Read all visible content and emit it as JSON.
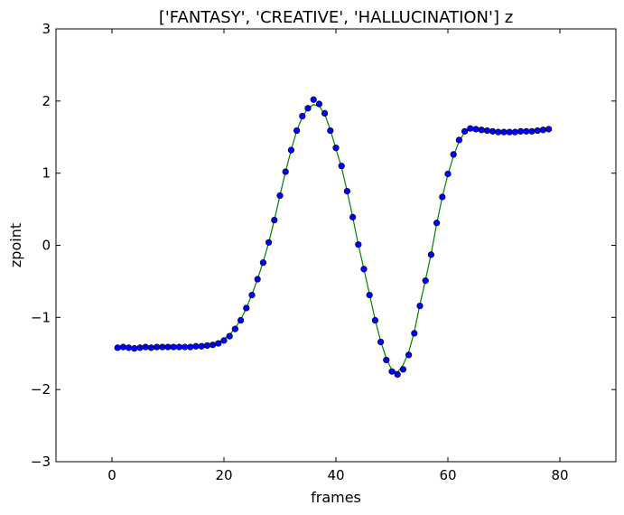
{
  "chart_data": {
    "type": "line",
    "title": "['FANTASY', 'CREATIVE', 'HALLUCINATION'] z",
    "xlabel": "frames",
    "ylabel": "zpoint",
    "xlim": [
      -10,
      90
    ],
    "ylim": [
      -3,
      3
    ],
    "xticks": [
      0,
      20,
      40,
      60,
      80
    ],
    "yticks": [
      -3,
      -2,
      -1,
      0,
      1,
      2,
      3
    ],
    "xtick_labels": [
      "0",
      "20",
      "40",
      "60",
      "80"
    ],
    "ytick_labels": [
      "−3",
      "−2",
      "−1",
      "0",
      "1",
      "2",
      "3"
    ],
    "grid": false,
    "series": [
      {
        "kind": "line",
        "color": "#008000",
        "x": [
          1,
          2,
          3,
          4,
          5,
          6,
          7,
          8,
          9,
          10,
          11,
          12,
          13,
          14,
          15,
          16,
          17,
          18,
          19,
          20,
          21,
          22,
          23,
          24,
          25,
          26,
          27,
          28,
          29,
          30,
          31,
          32,
          33,
          34,
          35,
          36,
          37,
          38,
          39,
          40,
          41,
          42,
          43,
          44,
          45,
          46,
          47,
          48,
          49,
          50,
          51,
          52,
          53,
          54,
          55,
          56,
          57,
          58,
          59,
          60,
          61,
          62,
          63,
          64,
          65,
          66,
          67,
          68,
          69,
          70,
          71,
          72,
          73,
          74,
          75,
          76,
          77,
          78
        ],
        "values": [
          -1.42,
          -1.42,
          -1.42,
          -1.42,
          -1.42,
          -1.42,
          -1.42,
          -1.42,
          -1.42,
          -1.42,
          -1.42,
          -1.42,
          -1.42,
          -1.41,
          -1.41,
          -1.4,
          -1.39,
          -1.37,
          -1.35,
          -1.3,
          -1.24,
          -1.15,
          -1.03,
          -0.87,
          -0.68,
          -0.47,
          -0.23,
          0.04,
          0.35,
          0.69,
          1.02,
          1.32,
          1.59,
          1.78,
          1.9,
          1.95,
          1.93,
          1.82,
          1.6,
          1.34,
          1.08,
          0.75,
          0.39,
          0.01,
          -0.33,
          -0.68,
          -1.03,
          -1.33,
          -1.57,
          -1.73,
          -1.76,
          -1.66,
          -1.48,
          -1.2,
          -0.82,
          -0.48,
          -0.12,
          0.3,
          0.67,
          0.98,
          1.24,
          1.44,
          1.57,
          1.61,
          1.61,
          1.6,
          1.59,
          1.58,
          1.58,
          1.57,
          1.57,
          1.57,
          1.58,
          1.58,
          1.58,
          1.59,
          1.59,
          1.6
        ]
      },
      {
        "kind": "scatter",
        "color": "#0000ff",
        "x": [
          1,
          2,
          3,
          4,
          5,
          6,
          7,
          8,
          9,
          10,
          11,
          12,
          13,
          14,
          15,
          16,
          17,
          18,
          19,
          20,
          21,
          22,
          23,
          24,
          25,
          26,
          27,
          28,
          29,
          30,
          31,
          32,
          33,
          34,
          35,
          36,
          37,
          38,
          39,
          40,
          41,
          42,
          43,
          44,
          45,
          46,
          47,
          48,
          49,
          50,
          51,
          52,
          53,
          54,
          55,
          56,
          57,
          58,
          59,
          60,
          61,
          62,
          63,
          64,
          65,
          66,
          67,
          68,
          69,
          70,
          71,
          72,
          73,
          74,
          75,
          76,
          77,
          78
        ],
        "values": [
          -1.42,
          -1.41,
          -1.42,
          -1.43,
          -1.42,
          -1.41,
          -1.42,
          -1.41,
          -1.41,
          -1.41,
          -1.41,
          -1.41,
          -1.41,
          -1.41,
          -1.4,
          -1.4,
          -1.39,
          -1.38,
          -1.36,
          -1.32,
          -1.26,
          -1.16,
          -1.04,
          -0.87,
          -0.69,
          -0.47,
          -0.24,
          0.04,
          0.35,
          0.69,
          1.02,
          1.32,
          1.59,
          1.79,
          1.9,
          2.02,
          1.96,
          1.83,
          1.59,
          1.35,
          1.1,
          0.75,
          0.39,
          0.01,
          -0.33,
          -0.69,
          -1.04,
          -1.34,
          -1.59,
          -1.75,
          -1.79,
          -1.72,
          -1.52,
          -1.22,
          -0.84,
          -0.49,
          -0.13,
          0.31,
          0.67,
          0.99,
          1.26,
          1.46,
          1.58,
          1.62,
          1.61,
          1.6,
          1.59,
          1.58,
          1.57,
          1.57,
          1.57,
          1.57,
          1.58,
          1.58,
          1.58,
          1.59,
          1.6,
          1.61
        ]
      }
    ]
  }
}
